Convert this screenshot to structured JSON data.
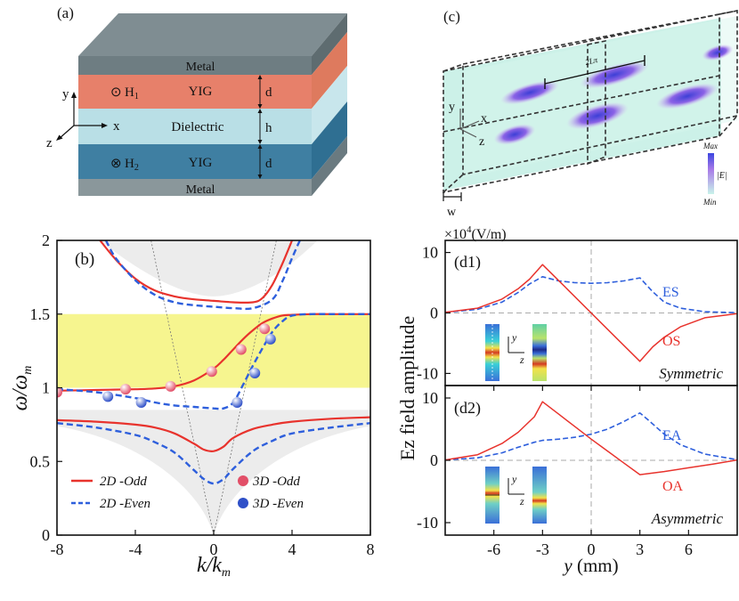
{
  "panel_a": {
    "label": "(a)",
    "layers": {
      "metal_top": "Metal",
      "yig_top": "YIG",
      "dielectric": "Dielectric",
      "yig_bottom": "YIG",
      "metal_bottom": "Metal"
    },
    "field_top": "H",
    "field_top_sub": "1",
    "field_top_symbol": "⊙",
    "field_bottom": "H",
    "field_bottom_sub": "2",
    "field_bottom_symbol": "⊗",
    "dims": {
      "top": "d",
      "middle": "h",
      "bottom": "d"
    },
    "axes": {
      "y": "y",
      "x": "x",
      "z": "z"
    },
    "colors": {
      "metal": "#6e7d82",
      "yig_top": "#e07a62",
      "dielectric": "#b9dfe6",
      "yig_bottom": "#3f7fa2"
    }
  },
  "panel_c": {
    "label": "(c)",
    "period_label": "2Lπ",
    "axes": {
      "y": "y",
      "x": "x",
      "z": "z"
    },
    "width_label": "w",
    "colorbar": {
      "max": "Max",
      "min": "Min",
      "quantity": "|E|"
    }
  },
  "chart_data": [
    {
      "id": "b",
      "type": "line",
      "label": "(b)",
      "xlabel": "k/k",
      "xlabel_sub": "m",
      "ylabel": "ω/ω",
      "ylabel_sub": "m",
      "xlim": [
        -8,
        8
      ],
      "ylim": [
        0,
        2
      ],
      "xticks": [
        -8,
        -4,
        0,
        4,
        8
      ],
      "yticks": [
        0,
        0.5,
        1,
        1.5,
        2
      ],
      "band": {
        "y_range": [
          1.0,
          1.5
        ],
        "color": "#f6f58f"
      },
      "light_cone_slopes": [
        0.6,
        -0.6
      ],
      "series": [
        {
          "name": "2D -Odd",
          "style": "solid",
          "color": "#e8332d",
          "x": [
            -8,
            -6,
            -4,
            -3,
            -2,
            -1,
            0,
            0.5,
            1,
            1.5,
            2,
            2.5,
            3,
            3.5,
            4,
            5,
            6,
            8
          ],
          "y": [
            0.98,
            0.985,
            0.99,
            0.995,
            1.01,
            1.05,
            1.13,
            1.19,
            1.26,
            1.33,
            1.39,
            1.44,
            1.47,
            1.49,
            1.495,
            1.5,
            1.5,
            1.5
          ]
        },
        {
          "name": "2D -Even",
          "style": "dashed",
          "color": "#2e5fdc",
          "x": [
            -8,
            -6,
            -4,
            -3,
            -2,
            -1,
            0,
            0.5,
            1,
            1.5,
            2,
            2.5,
            3,
            3.5,
            4,
            5,
            6,
            8
          ],
          "y": [
            0.99,
            0.97,
            0.93,
            0.9,
            0.88,
            0.87,
            0.86,
            0.86,
            0.9,
            1.02,
            1.15,
            1.27,
            1.38,
            1.45,
            1.49,
            1.5,
            1.5,
            1.5
          ]
        },
        {
          "name": "2D -Odd upper",
          "style": "solid",
          "color": "#e8332d",
          "x": [
            -5.8,
            -5,
            -4,
            -3,
            -2,
            -1,
            0,
            1,
            2,
            2.5,
            3,
            3.5,
            4
          ],
          "y": [
            2.0,
            1.87,
            1.74,
            1.66,
            1.62,
            1.6,
            1.59,
            1.58,
            1.58,
            1.61,
            1.7,
            1.84,
            2.0
          ]
        },
        {
          "name": "2D -Even upper",
          "style": "dashed",
          "color": "#2e5fdc",
          "x": [
            -5.5,
            -5,
            -4,
            -3,
            -2,
            -1,
            0,
            1,
            2,
            3,
            3.5,
            4,
            4.4
          ],
          "y": [
            2.0,
            1.88,
            1.73,
            1.63,
            1.58,
            1.56,
            1.55,
            1.54,
            1.54,
            1.6,
            1.72,
            1.88,
            2.0
          ]
        },
        {
          "name": "2D -Odd lower",
          "style": "solid",
          "color": "#e8332d",
          "x": [
            -8,
            -6,
            -4,
            -3,
            -2,
            -1,
            -0.5,
            0,
            0.5,
            1,
            2,
            3,
            4,
            6,
            8
          ],
          "y": [
            0.78,
            0.77,
            0.75,
            0.73,
            0.69,
            0.62,
            0.58,
            0.57,
            0.6,
            0.66,
            0.72,
            0.75,
            0.77,
            0.79,
            0.8
          ]
        },
        {
          "name": "2D -Even lower",
          "style": "dashed",
          "color": "#2e5fdc",
          "x": [
            -8,
            -6,
            -4,
            -3,
            -2,
            -1,
            -0.5,
            0,
            0.5,
            1,
            2,
            3,
            4,
            6,
            8
          ],
          "y": [
            0.76,
            0.73,
            0.68,
            0.63,
            0.56,
            0.44,
            0.38,
            0.35,
            0.38,
            0.45,
            0.57,
            0.64,
            0.69,
            0.73,
            0.76
          ]
        },
        {
          "name": "3D -Odd",
          "style": "markers",
          "color": "#e24f68",
          "x": [
            -8,
            -4.5,
            -2.2,
            -0.1,
            1.4,
            2.6
          ],
          "y": [
            0.97,
            0.99,
            1.01,
            1.11,
            1.26,
            1.4
          ]
        },
        {
          "name": "3D -Even",
          "style": "markers",
          "color": "#2f50c8",
          "x": [
            -5.4,
            -3.7,
            1.2,
            2.1,
            2.9
          ],
          "y": [
            0.94,
            0.9,
            0.9,
            1.1,
            1.33
          ]
        }
      ],
      "legend": [
        {
          "name": "2D -Odd",
          "style": "solid",
          "color": "#e8332d"
        },
        {
          "name": "2D -Even",
          "style": "dashed",
          "color": "#2e5fdc"
        },
        {
          "name": "3D -Odd",
          "style": "markers",
          "color": "#e24f68"
        },
        {
          "name": "3D -Even",
          "style": "markers",
          "color": "#2f50c8"
        }
      ]
    },
    {
      "id": "d1",
      "type": "line",
      "label": "(d1)",
      "annotation": "Symmetric",
      "xlim": [
        -9,
        9
      ],
      "ylim": [
        -12,
        12
      ],
      "yticks": [
        10,
        0,
        -10
      ],
      "series": [
        {
          "name": "ES",
          "style": "dashed",
          "color": "#2e5fdc",
          "x": [
            -9,
            -7,
            -5.5,
            -4.5,
            -3.8,
            -3,
            -2,
            -1,
            0,
            1,
            2,
            3,
            3.8,
            4.5,
            5.5,
            7,
            9
          ],
          "y": [
            0.1,
            0.6,
            1.8,
            3.4,
            4.8,
            6.0,
            5.3,
            5.0,
            4.9,
            5.0,
            5.3,
            5.8,
            3.5,
            1.8,
            0.8,
            0.2,
            0.05
          ]
        },
        {
          "name": "OS",
          "style": "solid",
          "color": "#e8332d",
          "x": [
            -9,
            -7,
            -5.5,
            -4.5,
            -3.8,
            -3,
            -1.5,
            0,
            1.5,
            3,
            3.8,
            4.5,
            5.5,
            7,
            9
          ],
          "y": [
            0.1,
            0.8,
            2.3,
            4.0,
            5.6,
            8.0,
            4.0,
            0,
            -4.0,
            -8.0,
            -5.6,
            -4.0,
            -2.3,
            -0.8,
            -0.1
          ]
        }
      ]
    },
    {
      "id": "d2",
      "type": "line",
      "label": "(d2)",
      "annotation": "Asymmetric",
      "xlim": [
        -9,
        9
      ],
      "ylim": [
        -12,
        12
      ],
      "xticks": [
        -6,
        -3,
        0,
        3,
        6
      ],
      "yticks": [
        10,
        0,
        -10
      ],
      "series": [
        {
          "name": "EA",
          "style": "dashed",
          "color": "#2e5fdc",
          "x": [
            -9,
            -7,
            -5.5,
            -4.5,
            -3.5,
            -3,
            -2,
            -1,
            0,
            1,
            2,
            3,
            3.5,
            4.5,
            5.5,
            7,
            9
          ],
          "y": [
            0.05,
            0.4,
            1.2,
            2.1,
            2.9,
            3.2,
            3.4,
            3.7,
            4.2,
            5.0,
            6.2,
            7.6,
            6.5,
            4.2,
            2.5,
            1.0,
            0.1
          ]
        },
        {
          "name": "OA",
          "style": "solid",
          "color": "#e8332d",
          "x": [
            -9,
            -7,
            -5.5,
            -4.5,
            -3.5,
            -3,
            -2,
            -1,
            0,
            1,
            2,
            3,
            4.5,
            6,
            7.5,
            9
          ],
          "y": [
            0.05,
            0.9,
            2.7,
            4.5,
            7.0,
            9.4,
            7.4,
            5.4,
            3.4,
            1.5,
            -0.4,
            -2.3,
            -1.8,
            -1.2,
            -0.6,
            0.05
          ]
        }
      ]
    }
  ],
  "panel_d": {
    "ylabel": "Ez field amplitude",
    "xlabel": "y",
    "xlabel_unit": "(mm)",
    "scale_label": "×10",
    "scale_exp": "4",
    "scale_unit": "(V/m)",
    "inset_axes": {
      "y": "y",
      "z": "z"
    }
  }
}
